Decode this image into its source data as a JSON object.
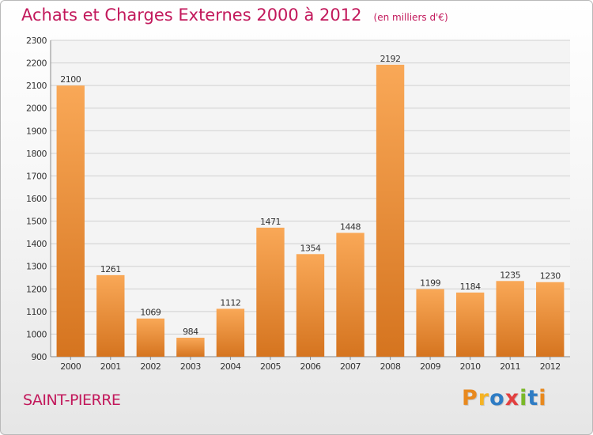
{
  "header": {
    "title": "Achats et Charges Externes 2000 à 2012",
    "subtitle": "(en milliers d'€)"
  },
  "footer": {
    "commune": "SAINT-PIERRE",
    "brand": "Proxiti"
  },
  "colors": {
    "title": "#c2185b",
    "bar_light": "#f9a857",
    "bar_dark": "#d5741f",
    "grid": "#d0d0d0",
    "plot_bg": "#f4f4f4",
    "brand_letters": [
      "#e8891e",
      "#f5b324",
      "#2e7cc4",
      "#e23f3f",
      "#7ab828",
      "#2e7cc4",
      "#e8891e"
    ]
  },
  "chart_data": {
    "type": "bar",
    "categories": [
      "2000",
      "2001",
      "2002",
      "2003",
      "2004",
      "2005",
      "2006",
      "2007",
      "2008",
      "2009",
      "2010",
      "2011",
      "2012"
    ],
    "values": [
      2100,
      1261,
      1069,
      984,
      1112,
      1471,
      1354,
      1448,
      2192,
      1199,
      1184,
      1235,
      1230
    ],
    "data_labels": [
      "2100",
      "1261",
      "1069",
      "984",
      "1112",
      "1471",
      "1354",
      "1448",
      "2192",
      "1199",
      "1184",
      "1235",
      "1230"
    ],
    "yticks": [
      "900",
      "1000",
      "1100",
      "1200",
      "1300",
      "1400",
      "1500",
      "1600",
      "1700",
      "1800",
      "1900",
      "2000",
      "2100",
      "2200",
      "2300"
    ],
    "ylim": [
      900,
      2300
    ],
    "grid": true,
    "legend": "none",
    "title": "Achats et Charges Externes 2000 à 2012",
    "xlabel": "",
    "ylabel": ""
  }
}
